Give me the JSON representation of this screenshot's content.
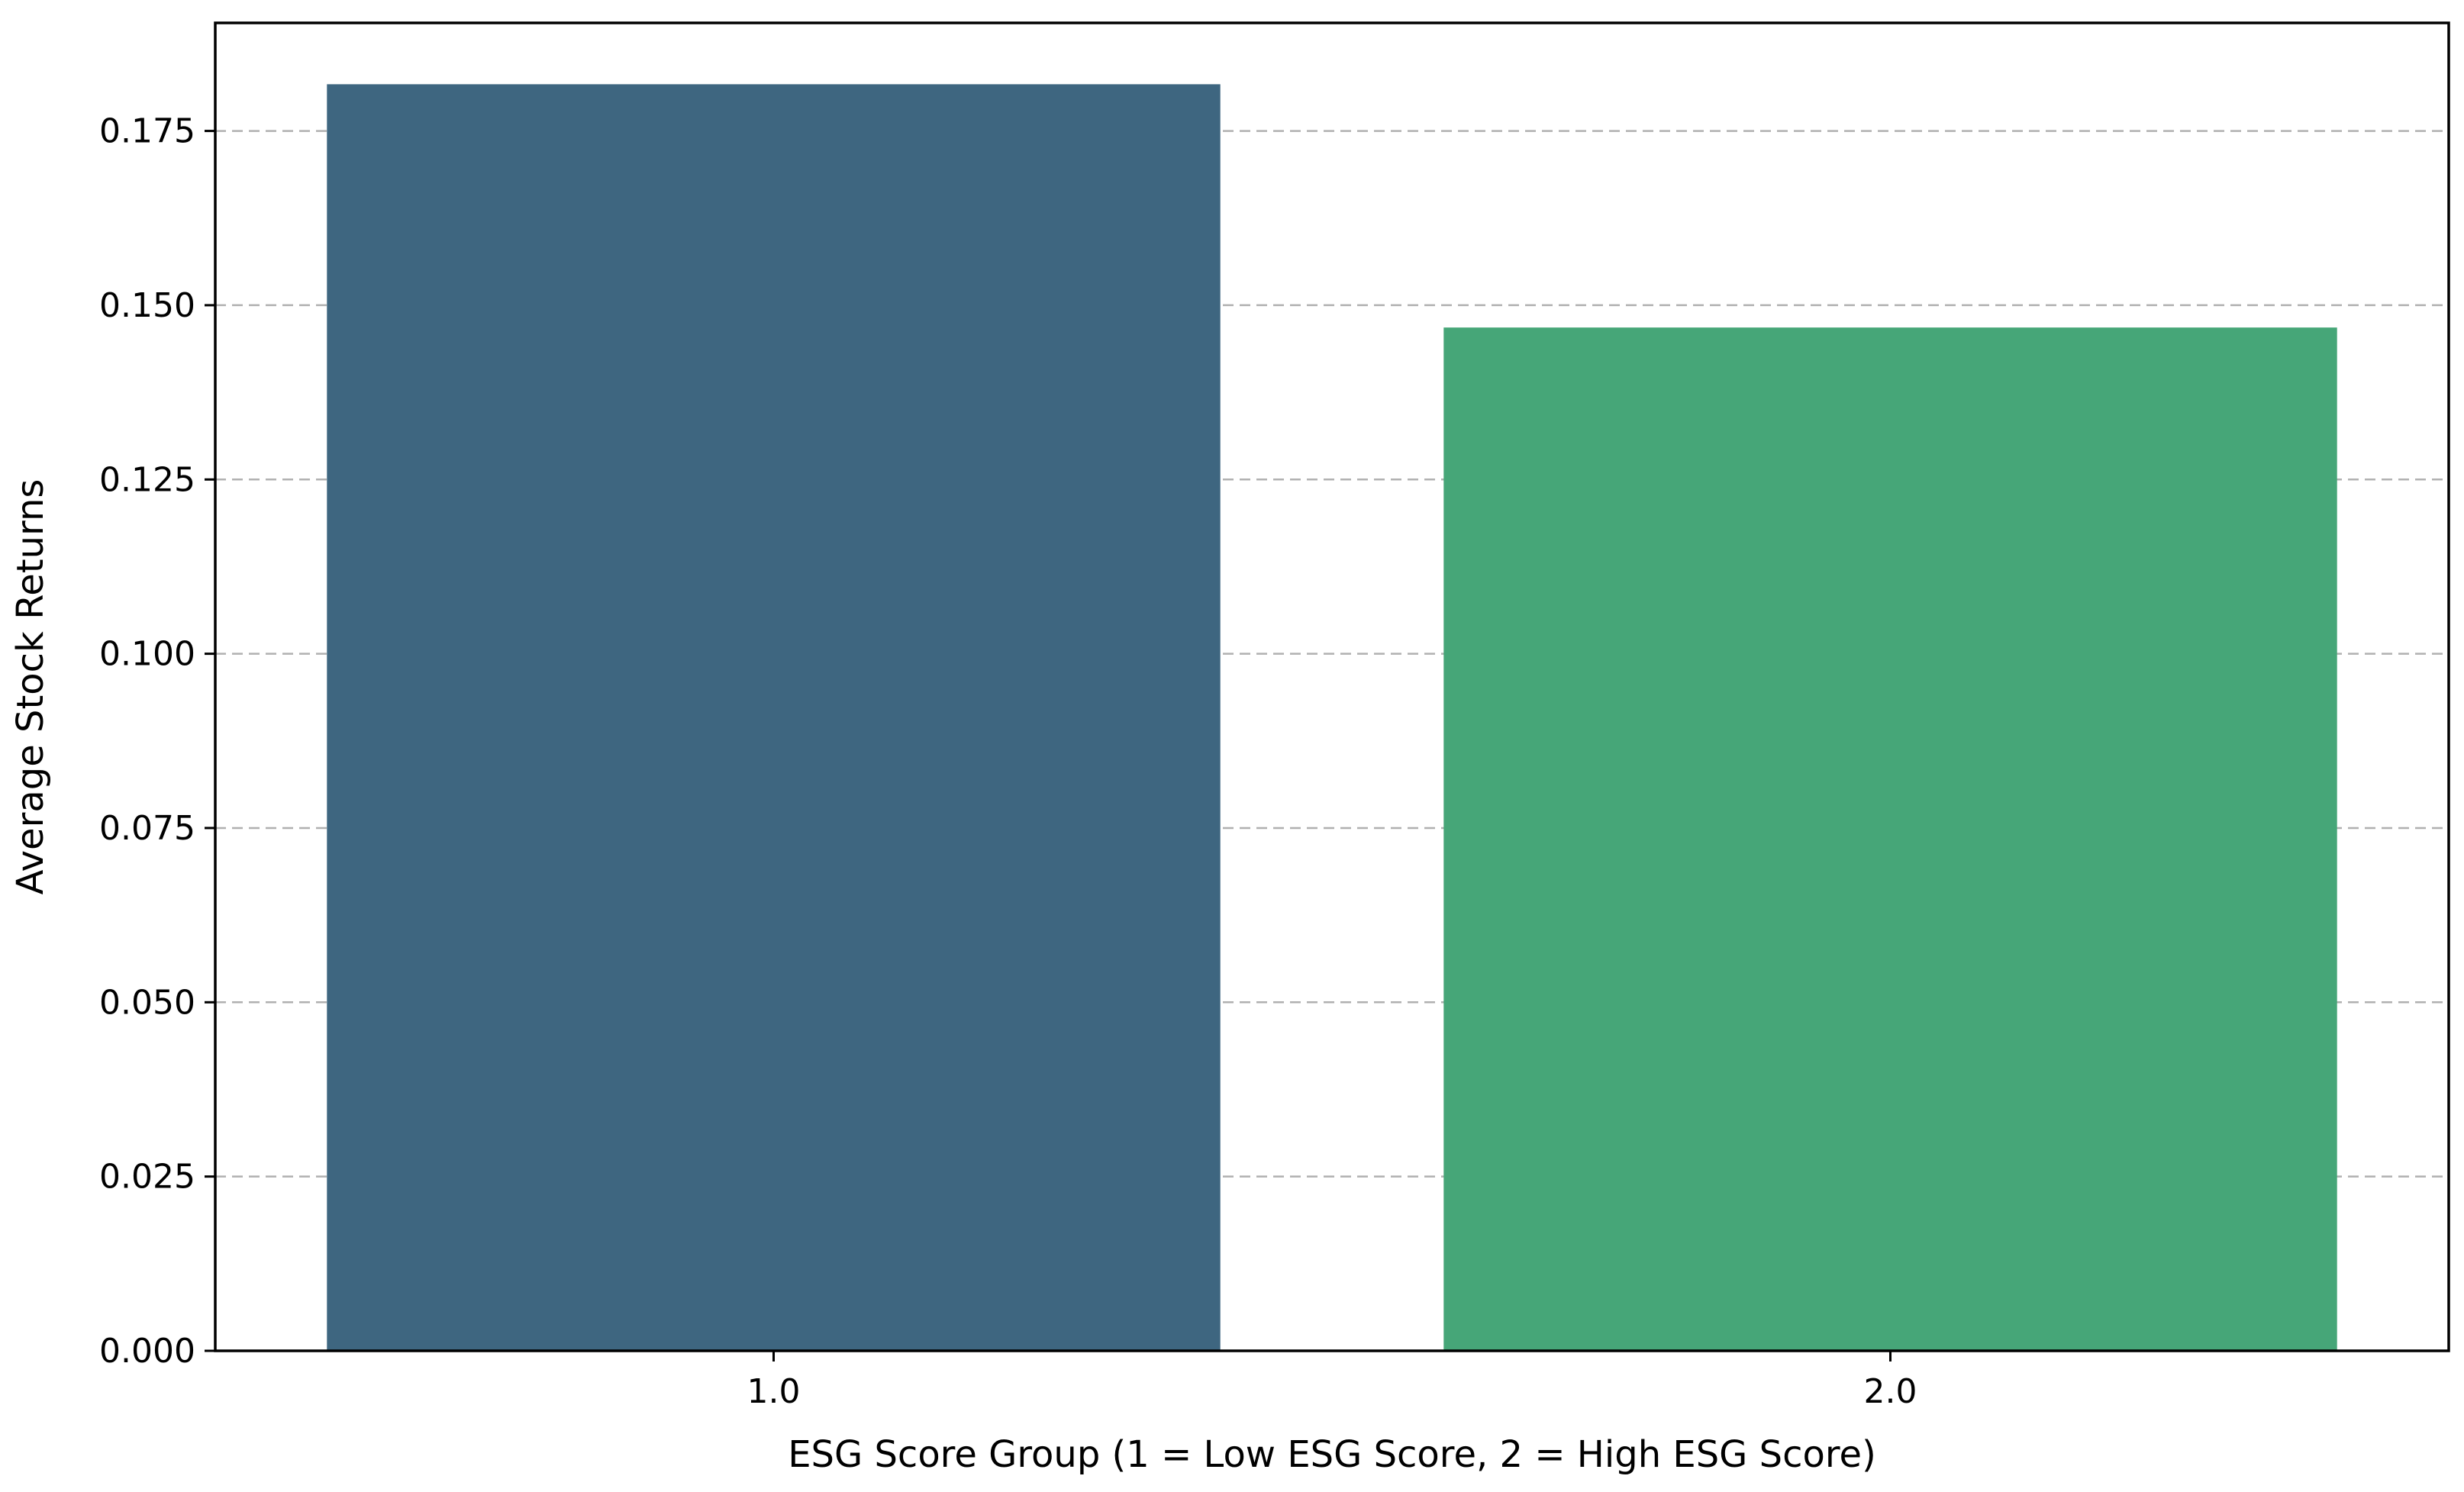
{
  "chart_data": {
    "type": "bar",
    "categories": [
      "1.0",
      "2.0"
    ],
    "values": [
      0.1817,
      0.1468
    ],
    "colors": [
      "#3e6680",
      "#46a678"
    ],
    "title": "",
    "xlabel": "ESG Score Group (1 = Low ESG Score, 2 = High ESG Score)",
    "ylabel": "Average Stock Returns",
    "ylim": [
      0,
      0.1905
    ],
    "yticks": [
      0.0,
      0.025,
      0.05,
      0.075,
      0.1,
      0.125,
      0.15,
      0.175
    ],
    "ytick_labels": [
      "0.000",
      "0.025",
      "0.050",
      "0.075",
      "0.100",
      "0.125",
      "0.150",
      "0.175"
    ],
    "grid": "y-axis dashed",
    "legend": "none"
  }
}
